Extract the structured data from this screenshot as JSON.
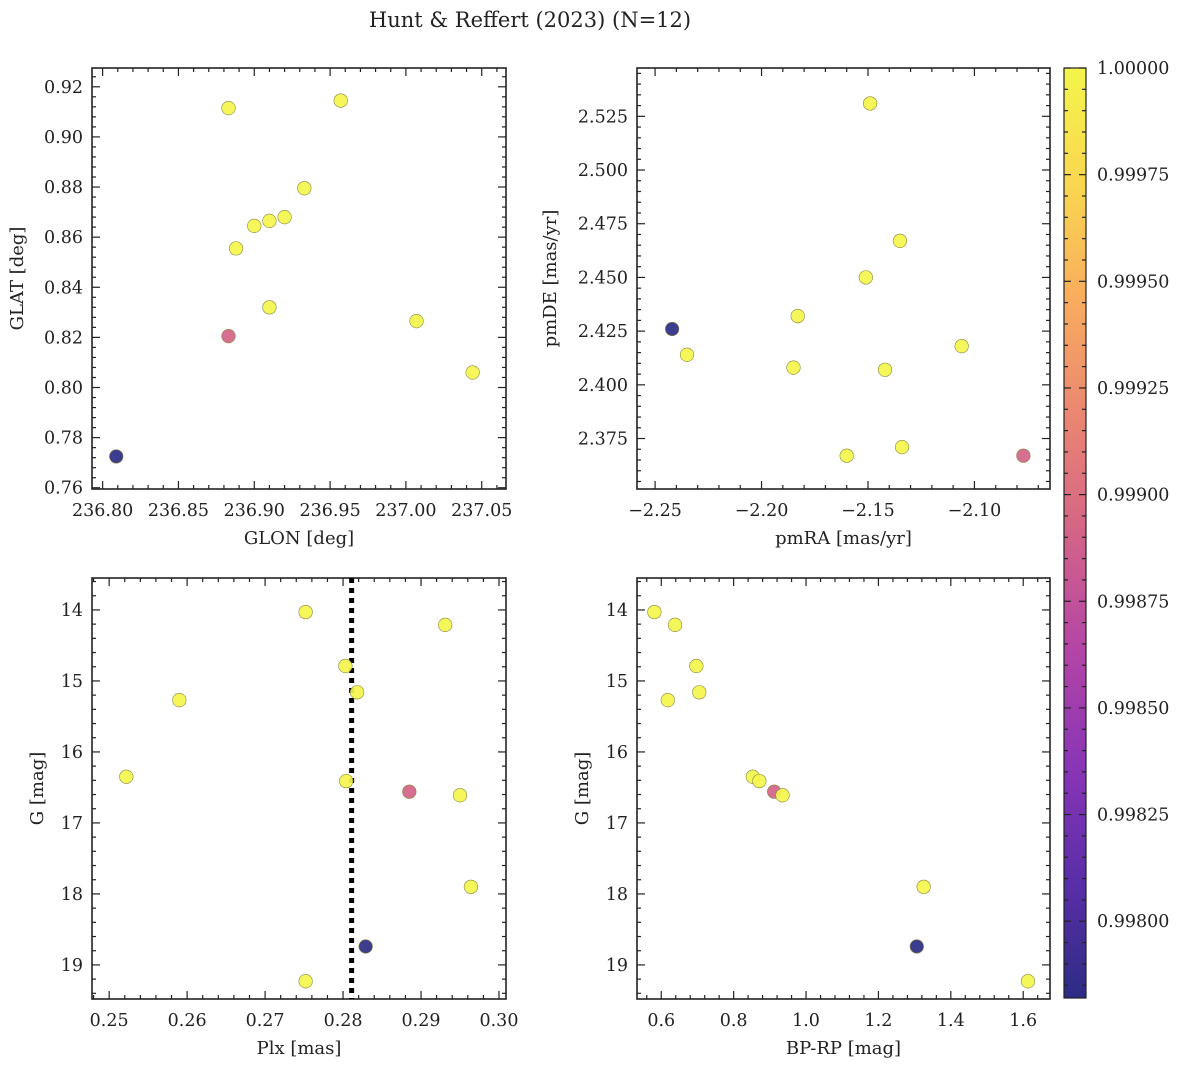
{
  "figure_title": "Hunt & Reffert (2023) (N=12)",
  "colorbar": {
    "range": [
      0.99782,
      1.0
    ],
    "ticks": [
      0.998,
      0.99825,
      0.9985,
      0.99875,
      0.999,
      0.99925,
      0.9995,
      0.99975,
      1.0
    ],
    "tick_labels": [
      "0.99800",
      "0.99825",
      "0.99850",
      "0.99875",
      "0.99900",
      "0.99925",
      "0.99950",
      "0.99975",
      "1.00000"
    ],
    "colormap": "plasma"
  },
  "chart_data": [
    {
      "type": "scatter",
      "name": "GLON vs GLAT",
      "xlabel": "GLON [deg]",
      "ylabel": "GLAT [deg]",
      "xlim": [
        236.793,
        237.066
      ],
      "ylim": [
        0.7595,
        0.9275
      ],
      "y_inverted": false,
      "xticks": [
        236.8,
        236.85,
        236.9,
        236.95,
        237.0,
        237.05
      ],
      "xtick_labels": [
        "236.80",
        "236.85",
        "236.90",
        "236.95",
        "237.00",
        "237.05"
      ],
      "yticks": [
        0.76,
        0.78,
        0.8,
        0.82,
        0.84,
        0.86,
        0.88,
        0.9,
        0.92
      ],
      "ytick_labels": [
        "0.76",
        "0.78",
        "0.80",
        "0.82",
        "0.84",
        "0.86",
        "0.88",
        "0.90",
        "0.92"
      ],
      "x": [
        236.809,
        236.883,
        236.883,
        236.888,
        236.9,
        236.91,
        236.91,
        236.92,
        236.933,
        236.957,
        237.007,
        237.044
      ],
      "y": [
        0.7725,
        0.8205,
        0.9115,
        0.8555,
        0.8645,
        0.8665,
        0.832,
        0.868,
        0.8795,
        0.9145,
        0.8265,
        0.806
      ],
      "c": [
        0.99782,
        0.9989,
        1.0,
        1.0,
        1.0,
        1.0,
        1.0,
        1.0,
        1.0,
        1.0,
        1.0,
        1.0
      ]
    },
    {
      "type": "scatter",
      "name": "pmRA vs pmDE",
      "xlabel": "pmRA [mas/yr]",
      "ylabel": "pmDE [mas/yr]",
      "xlim": [
        -2.2585,
        -2.0645
      ],
      "ylim": [
        2.3515,
        2.5475
      ],
      "y_inverted": false,
      "xticks": [
        -2.25,
        -2.2,
        -2.15,
        -2.1
      ],
      "xtick_labels": [
        "−2.25",
        "−2.20",
        "−2.15",
        "−2.10"
      ],
      "yticks": [
        2.375,
        2.4,
        2.425,
        2.45,
        2.475,
        2.5,
        2.525
      ],
      "ytick_labels": [
        "2.375",
        "2.400",
        "2.425",
        "2.450",
        "2.475",
        "2.500",
        "2.525"
      ],
      "x": [
        -2.242,
        -2.235,
        -2.185,
        -2.183,
        -2.16,
        -2.151,
        -2.149,
        -2.142,
        -2.135,
        -2.134,
        -2.106,
        -2.077
      ],
      "y": [
        2.426,
        2.414,
        2.408,
        2.432,
        2.367,
        2.45,
        2.531,
        2.407,
        2.467,
        2.371,
        2.418,
        2.367
      ],
      "c": [
        0.99782,
        1.0,
        1.0,
        1.0,
        1.0,
        1.0,
        1.0,
        1.0,
        1.0,
        1.0,
        1.0,
        0.9989
      ]
    },
    {
      "type": "scatter",
      "name": "Plx vs G",
      "xlabel": "Plx [mas]",
      "ylabel": "G [mag]",
      "xlim": [
        0.2478,
        0.3009
      ],
      "ylim": [
        19.48,
        13.55
      ],
      "y_inverted": true,
      "reference_line": {
        "orientation": "vertical",
        "x": 0.2811,
        "style": "dotted"
      },
      "xticks": [
        0.25,
        0.26,
        0.27,
        0.28,
        0.29,
        0.3
      ],
      "xtick_labels": [
        "0.25",
        "0.26",
        "0.27",
        "0.28",
        "0.29",
        "0.30"
      ],
      "yticks": [
        14,
        15,
        16,
        17,
        18,
        19
      ],
      "ytick_labels": [
        "14",
        "15",
        "16",
        "17",
        "18",
        "19"
      ],
      "x": [
        0.2522,
        0.259,
        0.2752,
        0.2752,
        0.2803,
        0.2804,
        0.2818,
        0.2829,
        0.2885,
        0.2931,
        0.295,
        0.2964
      ],
      "y": [
        16.35,
        15.27,
        14.03,
        19.23,
        14.79,
        16.41,
        15.16,
        18.74,
        16.56,
        14.21,
        16.61,
        17.9
      ],
      "c": [
        1.0,
        1.0,
        1.0,
        1.0,
        1.0,
        1.0,
        1.0,
        0.99782,
        0.9989,
        1.0,
        1.0,
        1.0
      ]
    },
    {
      "type": "scatter",
      "name": "BP-RP vs G",
      "xlabel": "BP-RP [mag]",
      "ylabel": "G [mag]",
      "xlim": [
        0.533,
        1.674
      ],
      "ylim": [
        19.48,
        13.55
      ],
      "y_inverted": true,
      "xticks": [
        0.6,
        0.8,
        1.0,
        1.2,
        1.4,
        1.6
      ],
      "xtick_labels": [
        "0.6",
        "0.8",
        "1.0",
        "1.2",
        "1.4",
        "1.6"
      ],
      "yticks": [
        14,
        15,
        16,
        17,
        18,
        19
      ],
      "ytick_labels": [
        "14",
        "15",
        "16",
        "17",
        "18",
        "19"
      ],
      "x": [
        0.581,
        0.618,
        0.638,
        0.697,
        0.705,
        0.853,
        0.871,
        0.912,
        0.935,
        1.306,
        1.325,
        1.613
      ],
      "y": [
        14.03,
        15.27,
        14.21,
        14.79,
        15.16,
        16.35,
        16.41,
        16.56,
        16.61,
        18.74,
        17.9,
        19.23
      ],
      "c": [
        1.0,
        1.0,
        1.0,
        1.0,
        1.0,
        1.0,
        1.0,
        0.9989,
        1.0,
        0.99782,
        1.0,
        1.0
      ]
    }
  ]
}
